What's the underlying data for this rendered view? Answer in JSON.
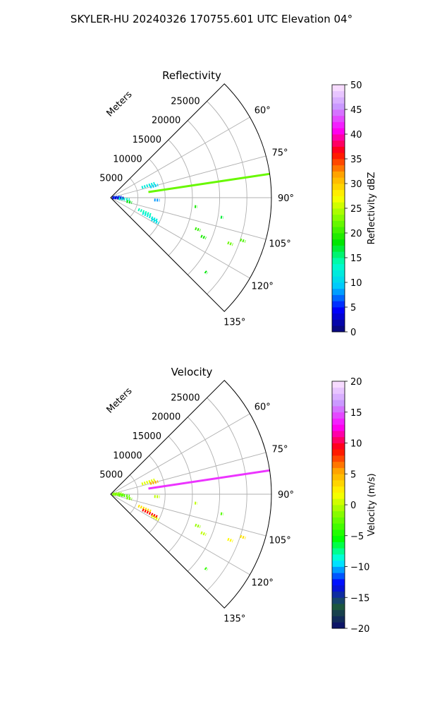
{
  "figure": {
    "title": "SKYLER-HU  20240326  170755.601 UTC Elevation 04°"
  },
  "chart_data": [
    {
      "type": "polar-sector-ppi",
      "title": "Reflectivity",
      "range_label": "Meters",
      "range_ticks": [
        5000,
        10000,
        15000,
        20000,
        25000
      ],
      "range_max": 29500,
      "azimuth_range_deg": [
        45,
        135
      ],
      "azimuth_tick_labels": [
        "60°",
        "75°",
        "90°",
        "105°",
        "120°",
        "135°"
      ],
      "azimuth_ticks_deg": [
        60,
        75,
        90,
        105,
        120,
        135
      ],
      "grid": true,
      "colorbar": {
        "label": "Reflectivity dBZ",
        "min": 0,
        "max": 50,
        "ticks": [
          0,
          5,
          10,
          15,
          20,
          25,
          30,
          35,
          40,
          45,
          50
        ]
      },
      "echoes": [
        {
          "az": 81.5,
          "r_start": 7000,
          "r_end": 29500,
          "value": 22,
          "desc": "strong radial spoke"
        },
        {
          "az": 72,
          "r_start": 6000,
          "r_end": 8500,
          "value": 12
        },
        {
          "az": 75,
          "r_start": 7500,
          "r_end": 9000,
          "value": 10
        },
        {
          "az": 86,
          "r_start": 500,
          "r_end": 2000,
          "value": 6
        },
        {
          "az": 92,
          "r_start": 300,
          "r_end": 2500,
          "value": 3
        },
        {
          "az": 96,
          "r_start": 1500,
          "r_end": 3500,
          "value": 13
        },
        {
          "az": 93,
          "r_start": 8000,
          "r_end": 9000,
          "value": 8
        },
        {
          "az": 103,
          "r_start": 3000,
          "r_end": 4000,
          "value": 18
        },
        {
          "az": 113,
          "r_start": 5500,
          "r_end": 8000,
          "value": 14
        },
        {
          "az": 116,
          "r_start": 6500,
          "r_end": 9500,
          "value": 12
        },
        {
          "az": 118,
          "r_start": 8500,
          "r_end": 10000,
          "value": 11
        },
        {
          "az": 96,
          "r_start": 15500,
          "r_end": 16000,
          "value": 19
        },
        {
          "az": 100,
          "r_start": 20500,
          "r_end": 21000,
          "value": 17
        },
        {
          "az": 110,
          "r_start": 16500,
          "r_end": 17500,
          "value": 20
        },
        {
          "az": 113,
          "r_start": 18000,
          "r_end": 19000,
          "value": 19
        },
        {
          "az": 108,
          "r_start": 25000,
          "r_end": 26000,
          "value": 21
        },
        {
          "az": 111,
          "r_start": 23000,
          "r_end": 24000,
          "value": 22
        },
        {
          "az": 128,
          "r_start": 22000,
          "r_end": 22500,
          "value": 18
        }
      ]
    },
    {
      "type": "polar-sector-ppi",
      "title": "Velocity",
      "range_label": "Meters",
      "range_ticks": [
        5000,
        10000,
        15000,
        20000,
        25000
      ],
      "range_max": 29500,
      "azimuth_range_deg": [
        45,
        135
      ],
      "azimuth_tick_labels": [
        "60°",
        "75°",
        "90°",
        "105°",
        "120°",
        "135°"
      ],
      "azimuth_ticks_deg": [
        60,
        75,
        90,
        105,
        120,
        135
      ],
      "grid": true,
      "colorbar": {
        "label": "Velocity (m/s)",
        "min": -20,
        "max": 20,
        "ticks": [
          -20,
          -15,
          -10,
          -5,
          0,
          5,
          10,
          15,
          20
        ]
      },
      "echoes": [
        {
          "az": 81.5,
          "r_start": 7000,
          "r_end": 29500,
          "value": 14,
          "desc": "strong radial spoke"
        },
        {
          "az": 72,
          "r_start": 6000,
          "r_end": 8500,
          "value": 1
        },
        {
          "az": 75,
          "r_start": 7500,
          "r_end": 9000,
          "value": 5
        },
        {
          "az": 86,
          "r_start": 500,
          "r_end": 2000,
          "value": -1
        },
        {
          "az": 92,
          "r_start": 300,
          "r_end": 2500,
          "value": -2
        },
        {
          "az": 96,
          "r_start": 1500,
          "r_end": 3500,
          "value": -3
        },
        {
          "az": 93,
          "r_start": 8000,
          "r_end": 9000,
          "value": 0
        },
        {
          "az": 103,
          "r_start": 3000,
          "r_end": 4000,
          "value": -2
        },
        {
          "az": 113,
          "r_start": 5500,
          "r_end": 8000,
          "value": 3
        },
        {
          "az": 116,
          "r_start": 6500,
          "r_end": 9500,
          "value": 9
        },
        {
          "az": 118,
          "r_start": 8500,
          "r_end": 10000,
          "value": 1
        },
        {
          "az": 96,
          "r_start": 15500,
          "r_end": 16000,
          "value": 0
        },
        {
          "az": 100,
          "r_start": 20500,
          "r_end": 21000,
          "value": -3
        },
        {
          "az": 110,
          "r_start": 16500,
          "r_end": 17500,
          "value": -1
        },
        {
          "az": 113,
          "r_start": 18000,
          "r_end": 19000,
          "value": 0
        },
        {
          "az": 108,
          "r_start": 25000,
          "r_end": 26000,
          "value": 3
        },
        {
          "az": 111,
          "r_start": 23000,
          "r_end": 24000,
          "value": 2
        },
        {
          "az": 128,
          "r_start": 22000,
          "r_end": 22500,
          "value": -4
        }
      ]
    }
  ],
  "colors": {
    "grid": "#b0b0b0",
    "frame": "#000000",
    "refl_stops": [
      "#0a0a6e",
      "#0000ff",
      "#00c8ff",
      "#00ffc8",
      "#00e600",
      "#7cfc00",
      "#ffff00",
      "#ffa500",
      "#ff0000",
      "#ff00ff",
      "#c896ff",
      "#ffe6ff"
    ],
    "vel_stops": [
      "#0a0a6e",
      "#1e5a3c",
      "#0000ff",
      "#00ffff",
      "#00ff00",
      "#7cfc00",
      "#ffff00",
      "#ffa500",
      "#ff0000",
      "#ff00ff",
      "#c896ff",
      "#ffe6ff"
    ]
  }
}
